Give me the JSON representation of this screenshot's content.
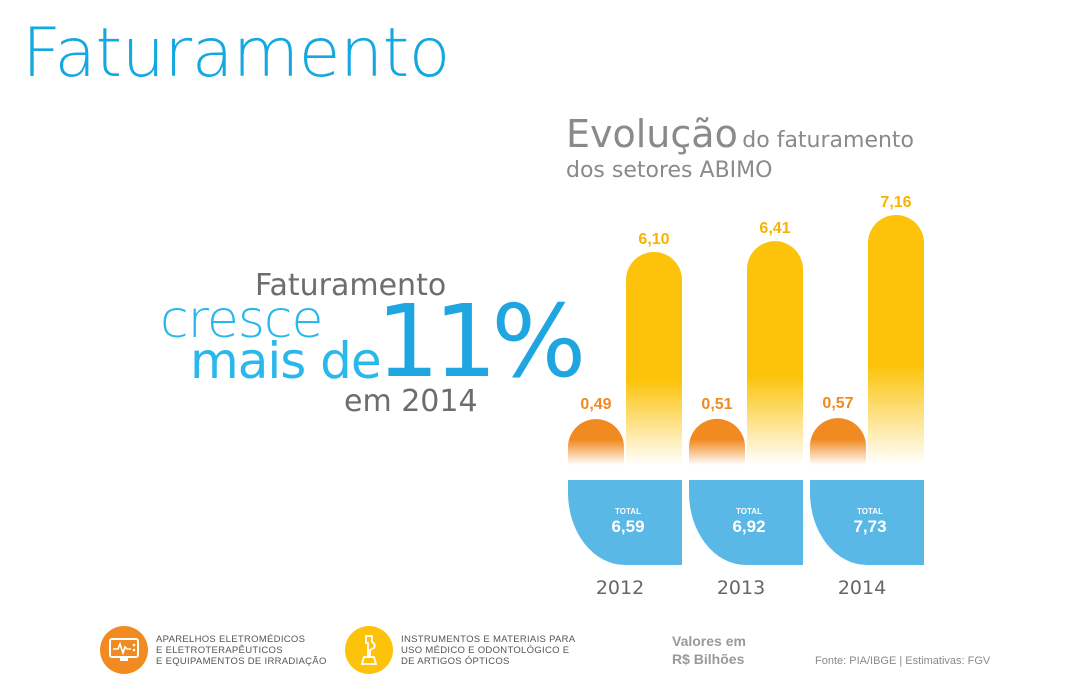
{
  "page": {
    "title": "Faturamento"
  },
  "chart_heading": {
    "word1": "Evolução",
    "rest1": "do faturamento",
    "line2": "dos setores ABIMO"
  },
  "headline": {
    "top": "Faturamento",
    "cresce": "cresce",
    "mais_de": "mais de",
    "percent": "11%",
    "year": "em 2014"
  },
  "chart_data": {
    "type": "bar",
    "title": "Evolução do faturamento dos setores ABIMO",
    "categories": [
      "2012",
      "2013",
      "2014"
    ],
    "series": [
      {
        "name": "Aparelhos eletromédicos e eletroterapêuticos e equipamentos de irradiação",
        "color": "#f18a21",
        "values": [
          0.49,
          0.51,
          0.57
        ],
        "labels": [
          "0,49",
          "0,51",
          "0,57"
        ]
      },
      {
        "name": "Instrumentos e materiais para uso médico e odontológico e de artigos ópticos",
        "color": "#fcc30a",
        "values": [
          6.1,
          6.41,
          7.16
        ],
        "labels": [
          "6,10",
          "6,41",
          "7,16"
        ]
      }
    ],
    "totals": {
      "label": "TOTAL",
      "values": [
        6.59,
        6.92,
        7.73
      ],
      "labels": [
        "6,59",
        "6,92",
        "7,73"
      ],
      "color": "#59b8e6"
    },
    "ylabel": "Valores em R$ Bilhões",
    "ylim": [
      0,
      7.16
    ]
  },
  "legend": {
    "item1": {
      "line1": "Aparelhos eletromédicos",
      "line2": "e eletroterapêuticos",
      "line3": "e equipamentos de irradiação",
      "color": "#f18a21",
      "icon": "monitor-icon"
    },
    "item2": {
      "line1": "Instrumentos e materiais para",
      "line2": "uso médico e odontológico e",
      "line3": "de artigos ópticos",
      "color": "#fcc30a",
      "icon": "instrument-icon"
    }
  },
  "units": {
    "line1": "Valores em",
    "line2": "R$ Bilhões"
  },
  "source": "Fonte: PIA/IBGE | Estimativas: FGV"
}
